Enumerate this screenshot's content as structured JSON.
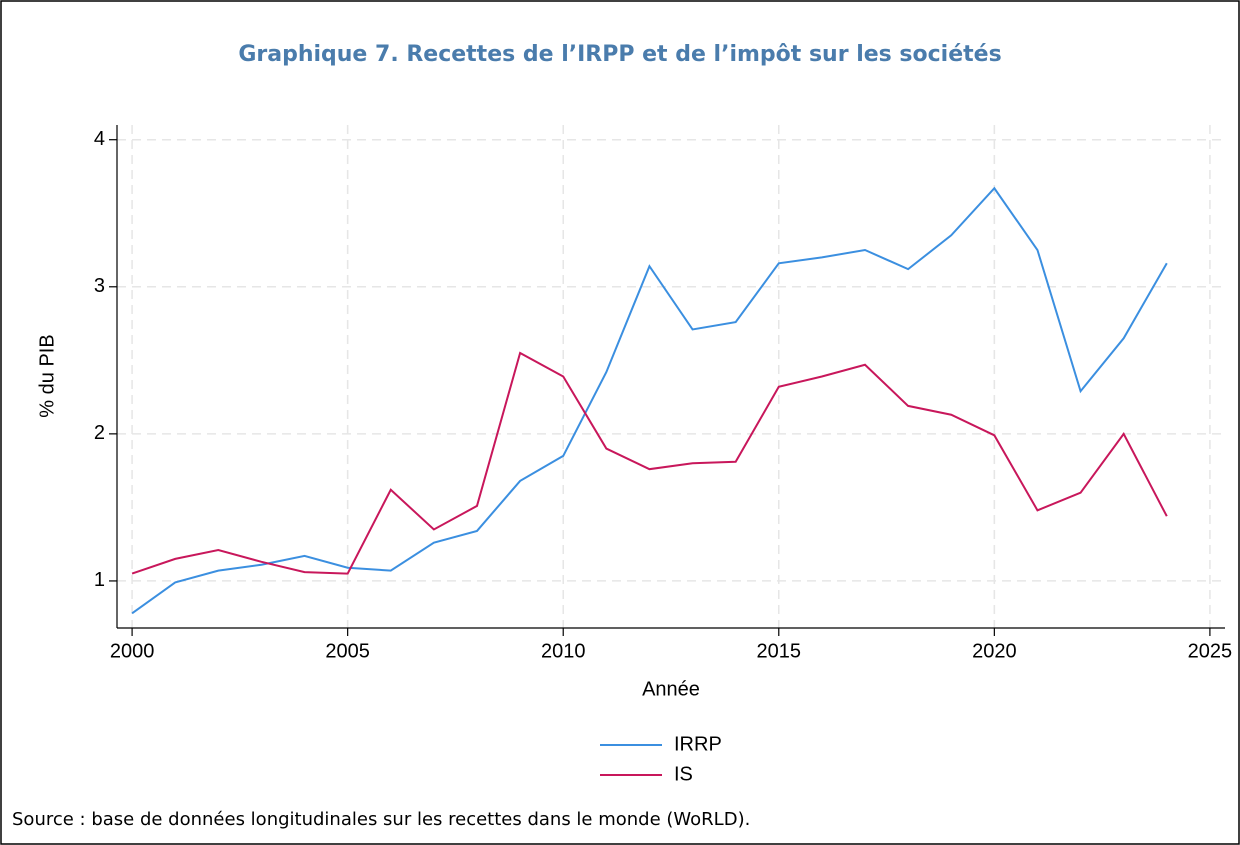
{
  "chart_data": {
    "type": "line",
    "title": "Graphique 7. Recettes de l’IRPP et de l’impôt sur les sociétés",
    "x_label": "Année",
    "y_label": "% du PIB",
    "source": "Source : base de données longitudinales sur les recettes dans le monde (WoRLD).",
    "x": [
      2000,
      2001,
      2002,
      2003,
      2004,
      2005,
      2006,
      2007,
      2008,
      2009,
      2010,
      2011,
      2012,
      2013,
      2014,
      2015,
      2016,
      2017,
      2018,
      2019,
      2020,
      2021,
      2022,
      2023,
      2024
    ],
    "series": [
      {
        "name": "IRRP",
        "color": "#3b8fe0",
        "values": [
          0.78,
          0.99,
          1.07,
          1.11,
          1.17,
          1.09,
          1.07,
          1.26,
          1.34,
          1.68,
          1.85,
          2.42,
          3.14,
          2.71,
          2.76,
          3.16,
          3.2,
          3.25,
          3.12,
          3.35,
          3.67,
          3.25,
          2.29,
          2.65,
          3.16
        ]
      },
      {
        "name": "IS",
        "color": "#c8175b",
        "values": [
          1.05,
          1.15,
          1.21,
          1.13,
          1.06,
          1.05,
          1.62,
          1.35,
          1.51,
          2.55,
          2.39,
          1.9,
          1.76,
          1.8,
          1.81,
          2.32,
          2.39,
          2.47,
          2.19,
          2.13,
          1.99,
          1.48,
          1.6,
          2.0,
          1.44
        ]
      }
    ],
    "xlim": [
      1999.65,
      2025.35
    ],
    "xticks": [
      2000,
      2005,
      2010,
      2015,
      2020,
      2025
    ],
    "ylim": [
      0.68,
      4.1
    ],
    "yticks": [
      1,
      2,
      3,
      4
    ],
    "grid": true,
    "legend": "bottom"
  }
}
